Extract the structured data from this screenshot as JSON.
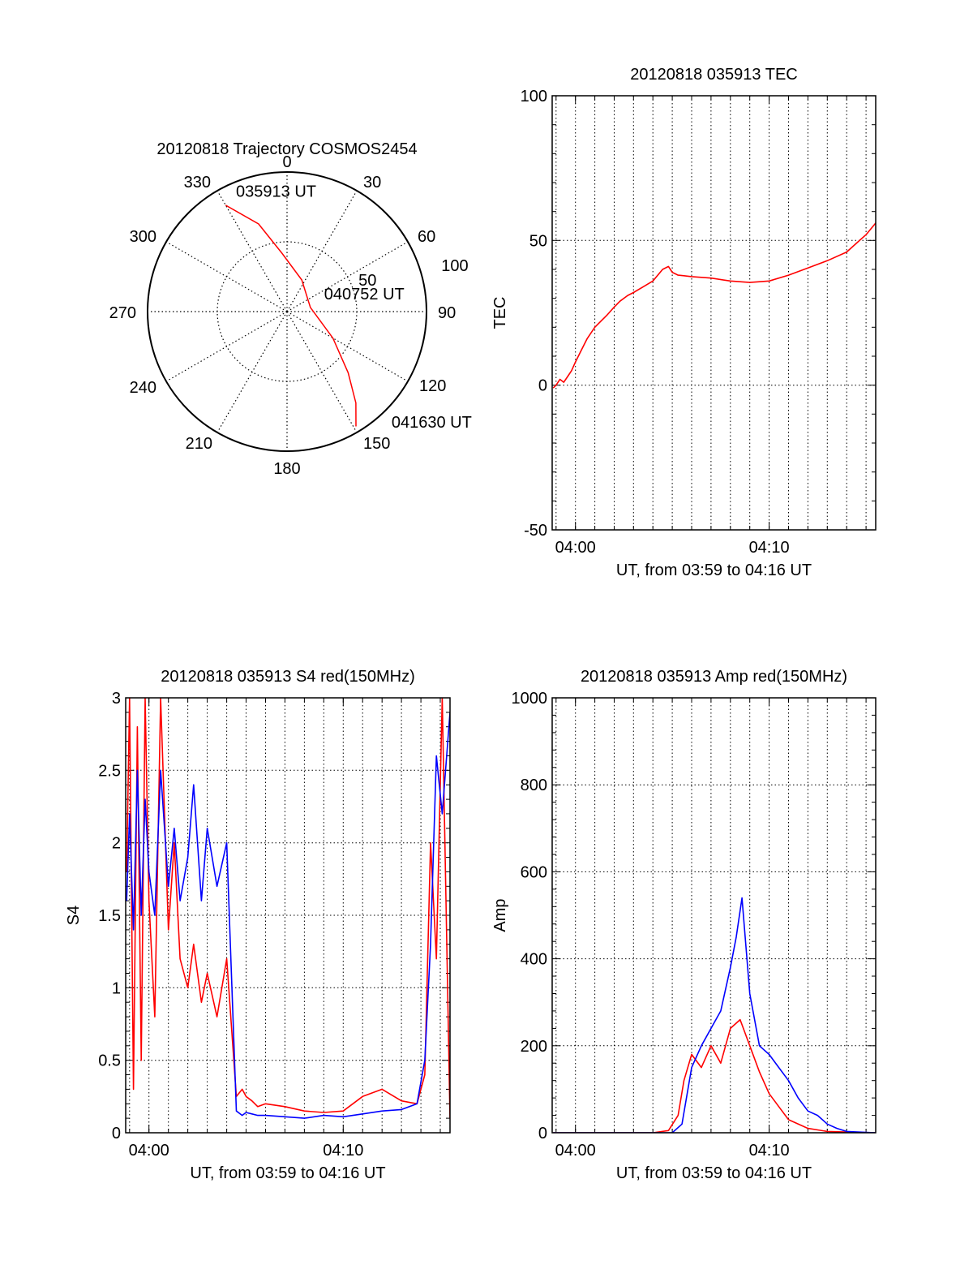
{
  "chart_data": [
    {
      "id": "trajectory",
      "type": "polar",
      "title": "20120818 Trajectory COSMOS2454",
      "azimuth_labels": [
        "0",
        "30",
        "60",
        "90",
        "120",
        "150",
        "180",
        "210",
        "240",
        "270",
        "300",
        "330"
      ],
      "radius_labels": [
        "50",
        "100"
      ],
      "radius_label_values": [
        50,
        100
      ],
      "r_max": 100,
      "grid": true,
      "series": [
        {
          "color": "#ff0000",
          "points": [
            {
              "az": 330,
              "r": 88
            },
            {
              "az": 342,
              "r": 66
            },
            {
              "az": 355,
              "r": 42
            },
            {
              "az": 25,
              "r": 25
            },
            {
              "az": 80,
              "r": 17
            },
            {
              "az": 120,
              "r": 38
            },
            {
              "az": 135,
              "r": 62
            },
            {
              "az": 143,
              "r": 82
            },
            {
              "az": 149,
              "r": 96
            }
          ]
        }
      ],
      "annotations": [
        {
          "text": "035913 UT",
          "az": 336,
          "r": 90
        },
        {
          "text": "040752 UT",
          "az": 72,
          "r": 28
        },
        {
          "text": "041630 UT",
          "az": 138,
          "r": 112
        }
      ]
    },
    {
      "id": "tec",
      "type": "line",
      "title": "20120818 035913 TEC",
      "xlabel": "UT, from 03:59 to 04:16 UT",
      "ylabel": "TEC",
      "xlim": [
        3.8,
        20.5
      ],
      "ylim": [
        -50,
        100
      ],
      "xticks": [
        {
          "value": 5,
          "label": "04:00"
        },
        {
          "value": 15,
          "label": "04:10"
        }
      ],
      "yticks": [
        {
          "value": -50,
          "label": "-50"
        },
        {
          "value": 0,
          "label": "0"
        },
        {
          "value": 50,
          "label": "50"
        },
        {
          "value": 100,
          "label": "100"
        }
      ],
      "grid": true,
      "series": [
        {
          "color": "#ff0000",
          "x": [
            3.85,
            4.0,
            4.2,
            4.4,
            4.6,
            4.8,
            5.0,
            5.3,
            5.6,
            6.0,
            6.3,
            6.6,
            7.0,
            7.3,
            7.7,
            8.0,
            8.5,
            9.0,
            9.5,
            9.8,
            10.0,
            10.3,
            10.6,
            11.0,
            12.0,
            13.0,
            14.0,
            15.0,
            16.0,
            17.0,
            18.0,
            19.0,
            19.5,
            20.0,
            20.5
          ],
          "y": [
            -1,
            0,
            2,
            1,
            3,
            5,
            8,
            12,
            16,
            20,
            22,
            24,
            27,
            29,
            31,
            32,
            34,
            36,
            40,
            41,
            39,
            38,
            37.8,
            37.5,
            37,
            36,
            35.5,
            36,
            38,
            40.5,
            43,
            46,
            49,
            52,
            56
          ]
        }
      ]
    },
    {
      "id": "s4",
      "type": "line",
      "title": "20120818 035913 S4 red(150MHz)",
      "xlabel": "UT, from 03:59 to 04:16 UT",
      "ylabel": "S4",
      "xlim": [
        3.8,
        20.5
      ],
      "ylim": [
        0,
        3
      ],
      "xticks": [
        {
          "value": 5,
          "label": "04:00"
        },
        {
          "value": 15,
          "label": "04:10"
        }
      ],
      "yticks": [
        {
          "value": 0,
          "label": "0"
        },
        {
          "value": 0.5,
          "label": "0.5"
        },
        {
          "value": 1,
          "label": "1"
        },
        {
          "value": 1.5,
          "label": "1.5"
        },
        {
          "value": 2,
          "label": "2"
        },
        {
          "value": 2.5,
          "label": "2.5"
        },
        {
          "value": 3,
          "label": "3"
        }
      ],
      "grid": true,
      "series": [
        {
          "color": "#ff0000",
          "x": [
            3.85,
            4.0,
            4.2,
            4.4,
            4.6,
            4.8,
            5.0,
            5.3,
            5.6,
            6.0,
            6.3,
            6.6,
            7.0,
            7.3,
            7.7,
            8.0,
            8.5,
            9.0,
            9.5,
            9.8,
            10.0,
            10.3,
            10.6,
            11.0,
            12.0,
            13.0,
            14.0,
            15.0,
            16.0,
            17.0,
            18.0,
            18.8,
            19.2,
            19.5,
            19.8,
            20.1,
            20.5
          ],
          "y": [
            1.8,
            3.0,
            0.3,
            2.8,
            0.5,
            3.0,
            1.6,
            0.8,
            3.0,
            1.4,
            2.0,
            1.2,
            1.0,
            1.3,
            0.9,
            1.1,
            0.8,
            1.2,
            0.25,
            0.3,
            0.25,
            0.22,
            0.18,
            0.2,
            0.18,
            0.15,
            0.14,
            0.15,
            0.25,
            0.3,
            0.22,
            0.2,
            0.4,
            2.0,
            1.2,
            3.0,
            0.1
          ]
        },
        {
          "color": "#0000ff",
          "x": [
            3.85,
            4.0,
            4.2,
            4.4,
            4.6,
            4.8,
            5.0,
            5.3,
            5.6,
            6.0,
            6.3,
            6.6,
            7.0,
            7.3,
            7.7,
            8.0,
            8.5,
            9.0,
            9.5,
            9.8,
            10.0,
            10.3,
            10.6,
            11.0,
            12.0,
            13.0,
            14.0,
            15.0,
            16.0,
            17.0,
            18.0,
            18.8,
            19.2,
            19.5,
            19.8,
            20.1,
            20.5
          ],
          "y": [
            1.6,
            2.2,
            1.4,
            2.5,
            1.5,
            2.3,
            1.8,
            1.5,
            2.5,
            1.7,
            2.1,
            1.6,
            1.9,
            2.4,
            1.6,
            2.1,
            1.7,
            2.0,
            0.15,
            0.12,
            0.14,
            0.13,
            0.12,
            0.12,
            0.11,
            0.1,
            0.12,
            0.11,
            0.13,
            0.15,
            0.16,
            0.2,
            0.5,
            1.3,
            2.6,
            2.2,
            2.9
          ]
        }
      ]
    },
    {
      "id": "amp",
      "type": "line",
      "title": "20120818 035913 Amp red(150MHz)",
      "xlabel": "UT, from 03:59 to 04:16 UT",
      "ylabel": "Amp",
      "xlim": [
        3.8,
        20.5
      ],
      "ylim": [
        0,
        1000
      ],
      "xticks": [
        {
          "value": 5,
          "label": "04:00"
        },
        {
          "value": 15,
          "label": "04:10"
        }
      ],
      "yticks": [
        {
          "value": 0,
          "label": "0"
        },
        {
          "value": 200,
          "label": "200"
        },
        {
          "value": 400,
          "label": "400"
        },
        {
          "value": 600,
          "label": "600"
        },
        {
          "value": 800,
          "label": "800"
        },
        {
          "value": 1000,
          "label": "1000"
        }
      ],
      "grid": true,
      "series": [
        {
          "color": "#ff0000",
          "x": [
            3.85,
            6.0,
            9.0,
            9.8,
            10.3,
            10.6,
            11.0,
            11.5,
            12.0,
            12.5,
            13.0,
            13.5,
            14.0,
            14.5,
            15.0,
            15.5,
            16.0,
            17.0,
            18.0,
            20.5
          ],
          "y": [
            0,
            0,
            0,
            5,
            40,
            120,
            180,
            150,
            200,
            160,
            240,
            260,
            200,
            140,
            90,
            60,
            30,
            10,
            3,
            0
          ]
        },
        {
          "color": "#0000ff",
          "x": [
            3.85,
            6.0,
            9.0,
            10.0,
            10.5,
            11.0,
            11.5,
            12.0,
            12.5,
            13.0,
            13.3,
            13.6,
            14.0,
            14.5,
            15.0,
            15.5,
            16.0,
            16.5,
            17.0,
            17.5,
            18.0,
            18.5,
            19.0,
            20.5
          ],
          "y": [
            0,
            0,
            0,
            0,
            20,
            150,
            200,
            240,
            280,
            380,
            450,
            540,
            320,
            200,
            180,
            150,
            120,
            80,
            50,
            40,
            20,
            10,
            3,
            0
          ]
        }
      ]
    }
  ]
}
